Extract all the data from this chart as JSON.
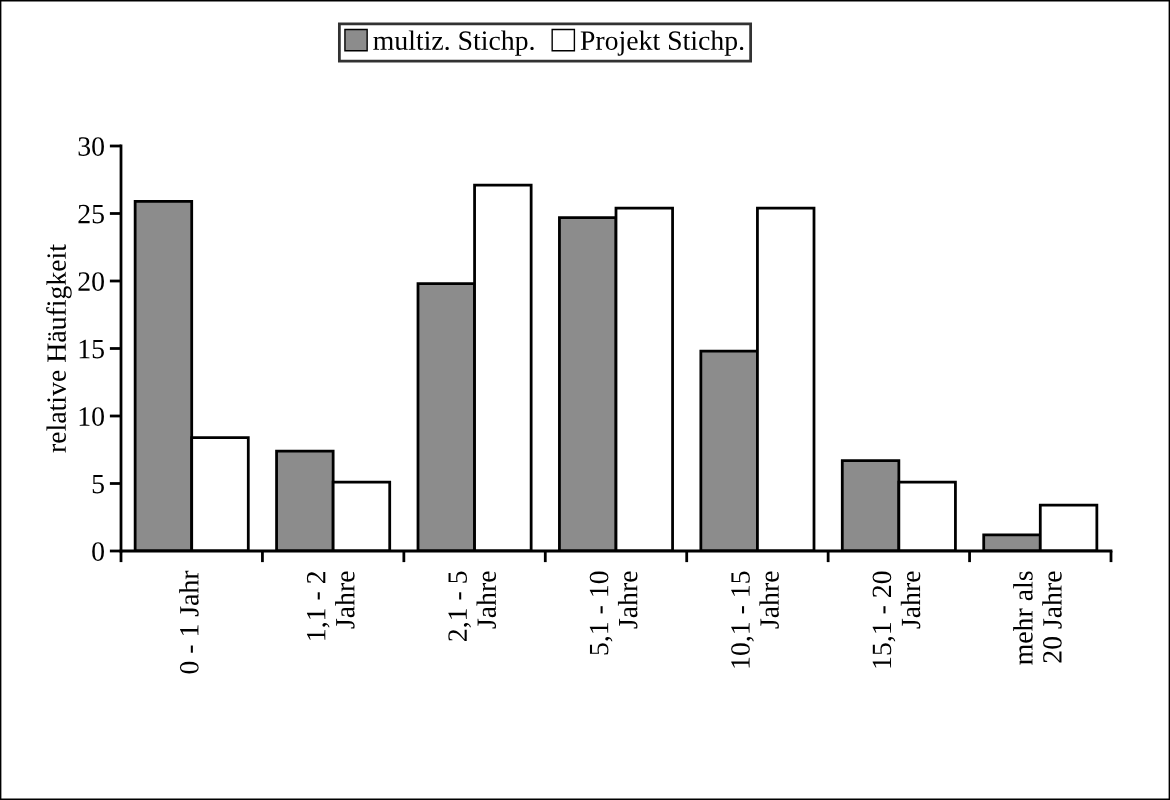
{
  "chart_data": {
    "type": "bar",
    "ylabel": "relative Häufigkeit",
    "categories": [
      "0 - 1 Jahr",
      "1,1 - 2\nJahre",
      "2,1 - 5\nJahre",
      "5,1 - 10\nJahre",
      "10,1 - 15\nJahre",
      "15,1 - 20\nJahre",
      "mehr als\n20 Jahre"
    ],
    "series": [
      {
        "name": "multiz. Stichp.",
        "color": "#8c8c8c",
        "values": [
          25.9,
          7.4,
          19.8,
          24.7,
          14.8,
          6.7,
          1.2
        ]
      },
      {
        "name": "Projekt Stichp.",
        "color": "#ffffff",
        "values": [
          8.4,
          5.1,
          27.1,
          25.4,
          25.4,
          5.1,
          3.4
        ]
      }
    ],
    "ylim": [
      0,
      30
    ],
    "yticks": [
      0,
      5,
      10,
      15,
      20,
      25,
      30
    ],
    "grid": false,
    "legend": "top"
  }
}
